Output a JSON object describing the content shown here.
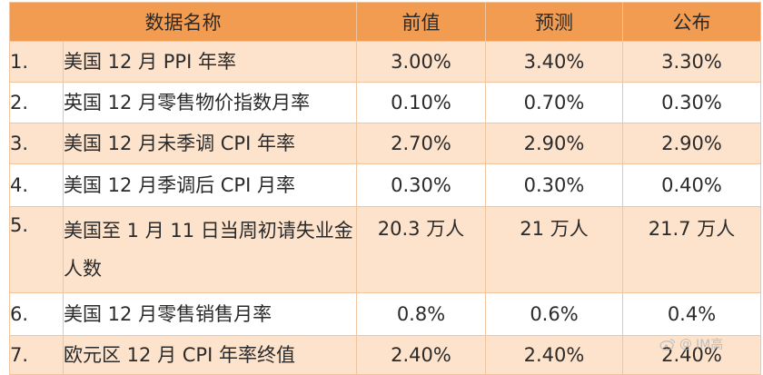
{
  "header": {
    "name": "数据名称",
    "prev": "前值",
    "forecast": "预测",
    "actual": "公布"
  },
  "rows": [
    {
      "index": "1.",
      "name": "美国 12 月 PPI 年率",
      "prev": "3.00%",
      "forecast": "3.40%",
      "actual": "3.30%"
    },
    {
      "index": "2.",
      "name": "英国 12 月零售物价指数月率",
      "prev": "0.10%",
      "forecast": "0.70%",
      "actual": "0.30%"
    },
    {
      "index": "3.",
      "name": "美国 12 月未季调 CPI 年率",
      "prev": "2.70%",
      "forecast": "2.90%",
      "actual": "2.90%"
    },
    {
      "index": "4.",
      "name": "美国 12 月季调后 CPI 月率",
      "prev": "0.30%",
      "forecast": "0.30%",
      "actual": "0.40%"
    },
    {
      "index": "5.",
      "name": "美国至 1 月 11 日当周初请失业金人数",
      "prev": "20.3 万人",
      "forecast": "21 万人",
      "actual": "21.7 万人"
    },
    {
      "index": "6.",
      "name": "美国 12 月零售销售月率",
      "prev": "0.8%",
      "forecast": "0.6%",
      "actual": "0.4%"
    },
    {
      "index": "7.",
      "name": "欧元区 12 月 CPI 年率终值",
      "prev": "2.40%",
      "forecast": "2.40%",
      "actual": "2.40%"
    }
  ],
  "watermark": {
    "text": "IM高"
  },
  "colors": {
    "header_bg": "#f29c52",
    "shaded_row": "#fde3cc",
    "actual_text": "#e8332c"
  }
}
